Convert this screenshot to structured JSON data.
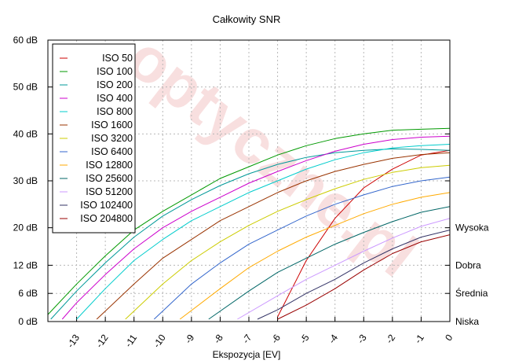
{
  "chart_data": {
    "type": "line",
    "title": "Całkowity SNR",
    "xlabel": "Ekspozycja [EV]",
    "ylabel": "",
    "xlim": [
      -14,
      0
    ],
    "ylim": [
      0,
      60
    ],
    "x_ticks": [
      {
        "value": -13,
        "label": "-13"
      },
      {
        "value": -12,
        "label": "-12"
      },
      {
        "value": -11,
        "label": "-11"
      },
      {
        "value": -10,
        "label": "-10"
      },
      {
        "value": -9,
        "label": "-9"
      },
      {
        "value": -8,
        "label": "-8"
      },
      {
        "value": -7,
        "label": "-7"
      },
      {
        "value": -6,
        "label": "-6"
      },
      {
        "value": -5,
        "label": "-5"
      },
      {
        "value": -4,
        "label": "-4"
      },
      {
        "value": -3,
        "label": "-3"
      },
      {
        "value": -2,
        "label": "-2"
      },
      {
        "value": -1,
        "label": "-1"
      },
      {
        "value": 0,
        "label": "0"
      }
    ],
    "y_ticks": [
      {
        "value": 0,
        "label": "0 dB"
      },
      {
        "value": 6,
        "label": "6 dB"
      },
      {
        "value": 12,
        "label": "12 dB"
      },
      {
        "value": 20,
        "label": "20 dB"
      },
      {
        "value": 30,
        "label": "30 dB"
      },
      {
        "value": 40,
        "label": "40 dB"
      },
      {
        "value": 50,
        "label": "50 dB"
      },
      {
        "value": 60,
        "label": "60 dB"
      }
    ],
    "right_labels": [
      {
        "value": 20,
        "label": "Wysoka"
      },
      {
        "value": 12,
        "label": "Dobra"
      },
      {
        "value": 6,
        "label": "Średnia"
      },
      {
        "value": 0,
        "label": "Niska"
      }
    ],
    "grid": true,
    "legend_position": "top-left",
    "series": [
      {
        "name": "ISO 50",
        "color": "#cc0000",
        "points": [
          [
            -6.0,
            1.0
          ],
          [
            -5.0,
            13.0
          ],
          [
            -4.0,
            22.0
          ],
          [
            -3.0,
            28.5
          ],
          [
            -2.0,
            32.5
          ],
          [
            -1.0,
            35.5
          ],
          [
            0.0,
            36.5
          ]
        ]
      },
      {
        "name": "ISO 100",
        "color": "#009900",
        "points": [
          [
            -14.0,
            1.5
          ],
          [
            -13.0,
            8.0
          ],
          [
            -12.0,
            14.0
          ],
          [
            -11.0,
            19.5
          ],
          [
            -10.0,
            23.5
          ],
          [
            -9.0,
            27.0
          ],
          [
            -8.0,
            30.5
          ],
          [
            -7.0,
            33.0
          ],
          [
            -6.0,
            35.5
          ],
          [
            -5.0,
            37.5
          ],
          [
            -4.0,
            39.0
          ],
          [
            -3.0,
            40.0
          ],
          [
            -2.0,
            40.8
          ],
          [
            -1.0,
            41.0
          ],
          [
            0.0,
            41.2
          ]
        ]
      },
      {
        "name": "ISO 200",
        "color": "#009999",
        "points": [
          [
            -13.9,
            0.5
          ],
          [
            -13.0,
            6.5
          ],
          [
            -12.0,
            12.5
          ],
          [
            -11.0,
            18.0
          ],
          [
            -10.0,
            22.5
          ],
          [
            -9.0,
            26.0
          ],
          [
            -8.0,
            29.0
          ],
          [
            -7.0,
            31.5
          ],
          [
            -6.0,
            33.5
          ],
          [
            -5.0,
            35.0
          ],
          [
            -4.0,
            36.0
          ],
          [
            -3.0,
            36.5
          ],
          [
            -2.0,
            36.8
          ],
          [
            -1.0,
            36.7
          ],
          [
            0.0,
            36.5
          ]
        ]
      },
      {
        "name": "ISO 400",
        "color": "#cc00cc",
        "points": [
          [
            -13.5,
            0.5
          ],
          [
            -13.0,
            4.0
          ],
          [
            -12.0,
            10.0
          ],
          [
            -11.0,
            15.5
          ],
          [
            -10.0,
            20.0
          ],
          [
            -9.0,
            23.5
          ],
          [
            -8.0,
            26.5
          ],
          [
            -7.0,
            29.5
          ],
          [
            -6.0,
            32.0
          ],
          [
            -5.0,
            34.3
          ],
          [
            -4.0,
            36.3
          ],
          [
            -3.0,
            37.8
          ],
          [
            -2.0,
            38.8
          ],
          [
            -1.0,
            39.3
          ],
          [
            0.0,
            39.5
          ]
        ]
      },
      {
        "name": "ISO 800",
        "color": "#00cccc",
        "points": [
          [
            -13.0,
            0.5
          ],
          [
            -12.0,
            7.0
          ],
          [
            -11.0,
            13.0
          ],
          [
            -10.0,
            17.5
          ],
          [
            -9.0,
            21.5
          ],
          [
            -8.0,
            24.5
          ],
          [
            -7.0,
            27.5
          ],
          [
            -6.0,
            30.0
          ],
          [
            -5.0,
            32.5
          ],
          [
            -4.0,
            34.5
          ],
          [
            -3.0,
            36.0
          ],
          [
            -2.0,
            37.0
          ],
          [
            -1.0,
            37.5
          ],
          [
            0.0,
            37.8
          ]
        ]
      },
      {
        "name": "ISO 1600",
        "color": "#993300",
        "points": [
          [
            -12.3,
            0.5
          ],
          [
            -11.0,
            8.0
          ],
          [
            -10.0,
            13.5
          ],
          [
            -9.0,
            17.5
          ],
          [
            -8.0,
            21.5
          ],
          [
            -7.0,
            24.5
          ],
          [
            -6.0,
            27.5
          ],
          [
            -5.0,
            30.0
          ],
          [
            -4.0,
            32.0
          ],
          [
            -3.0,
            33.5
          ],
          [
            -2.0,
            34.8
          ],
          [
            -1.0,
            35.6
          ],
          [
            0.0,
            36.0
          ]
        ]
      },
      {
        "name": "ISO 3200",
        "color": "#cccc00",
        "points": [
          [
            -11.3,
            0.5
          ],
          [
            -10.0,
            8.0
          ],
          [
            -9.0,
            13.0
          ],
          [
            -8.0,
            17.0
          ],
          [
            -7.0,
            20.5
          ],
          [
            -6.0,
            23.5
          ],
          [
            -5.0,
            26.0
          ],
          [
            -4.0,
            28.3
          ],
          [
            -3.0,
            30.3
          ],
          [
            -2.0,
            31.8
          ],
          [
            -1.0,
            32.8
          ],
          [
            0.0,
            33.3
          ]
        ]
      },
      {
        "name": "ISO 6400",
        "color": "#3366cc",
        "points": [
          [
            -10.3,
            0.5
          ],
          [
            -9.0,
            8.0
          ],
          [
            -8.0,
            12.5
          ],
          [
            -7.0,
            16.5
          ],
          [
            -6.0,
            19.5
          ],
          [
            -5.0,
            22.5
          ],
          [
            -4.0,
            25.0
          ],
          [
            -3.0,
            27.0
          ],
          [
            -2.0,
            28.8
          ],
          [
            -1.0,
            30.0
          ],
          [
            0.0,
            30.8
          ]
        ]
      },
      {
        "name": "ISO 12800",
        "color": "#ffaa00",
        "points": [
          [
            -9.4,
            0.5
          ],
          [
            -8.0,
            7.0
          ],
          [
            -7.0,
            11.5
          ],
          [
            -6.0,
            15.0
          ],
          [
            -5.0,
            18.0
          ],
          [
            -4.0,
            20.5
          ],
          [
            -3.0,
            23.0
          ],
          [
            -2.0,
            25.0
          ],
          [
            -1.0,
            26.5
          ],
          [
            0.0,
            27.5
          ]
        ]
      },
      {
        "name": "ISO 25600",
        "color": "#006666",
        "points": [
          [
            -8.4,
            0.5
          ],
          [
            -7.0,
            6.5
          ],
          [
            -6.0,
            10.5
          ],
          [
            -5.0,
            13.5
          ],
          [
            -4.0,
            16.5
          ],
          [
            -3.0,
            19.0
          ],
          [
            -2.0,
            21.3
          ],
          [
            -1.0,
            23.3
          ],
          [
            0.0,
            24.5
          ]
        ]
      },
      {
        "name": "ISO 51200",
        "color": "#cc99ff",
        "points": [
          [
            -7.4,
            0.5
          ],
          [
            -6.0,
            5.5
          ],
          [
            -5.0,
            9.0
          ],
          [
            -4.0,
            12.0
          ],
          [
            -3.0,
            15.0
          ],
          [
            -2.0,
            17.8
          ],
          [
            -1.0,
            20.3
          ],
          [
            0.0,
            22.0
          ]
        ]
      },
      {
        "name": "ISO 102400",
        "color": "#333366",
        "points": [
          [
            -6.7,
            0.5
          ],
          [
            -6.0,
            2.5
          ],
          [
            -5.0,
            6.0
          ],
          [
            -4.0,
            9.0
          ],
          [
            -3.0,
            12.5
          ],
          [
            -2.0,
            15.5
          ],
          [
            -1.0,
            18.0
          ],
          [
            0.0,
            19.5
          ]
        ]
      },
      {
        "name": "ISO 204800",
        "color": "#990000",
        "points": [
          [
            -6.0,
            0.5
          ],
          [
            -5.0,
            3.5
          ],
          [
            -4.0,
            7.0
          ],
          [
            -3.0,
            11.0
          ],
          [
            -2.0,
            14.5
          ],
          [
            -1.0,
            17.0
          ],
          [
            0.0,
            18.5
          ]
        ]
      }
    ]
  }
}
